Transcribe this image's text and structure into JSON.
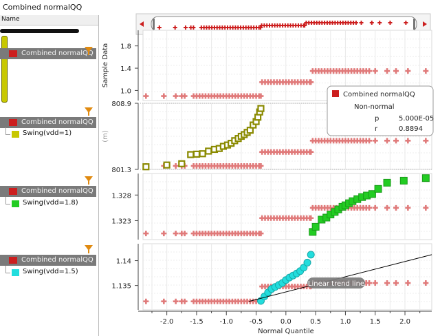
{
  "window": {
    "title": "Combined normalQQ"
  },
  "left_panel": {
    "header": "Name",
    "groups": [
      {
        "label": "Combined normalQQ",
        "color": "#cc1e1e",
        "child": null
      },
      {
        "label": "Combined normalQQ",
        "color": "#cc1e1e",
        "child": {
          "label": "Swing(vdd=1)",
          "color": "#c8c800"
        }
      },
      {
        "label": "Combined normalQQ",
        "color": "#cc1e1e",
        "child": {
          "label": "Swing(vdd=1.8)",
          "color": "#22cc22"
        }
      },
      {
        "label": "Combined normalQQ",
        "color": "#cc1e1e",
        "child": {
          "label": "Swing(vdd=1.5)",
          "color": "#22dddd"
        }
      }
    ]
  },
  "legend": {
    "entry": "Combined normalQQ",
    "status": "Non-normal",
    "stats": [
      {
        "key": "p",
        "value": "5.000E-05"
      },
      {
        "key": "r",
        "value": "0.8894"
      }
    ]
  },
  "annotation": {
    "text": "Linear trend line"
  },
  "colors": {
    "combined": "#e07a7a",
    "combined_legend": "#cc1e1e",
    "trend": "#000000"
  },
  "chart_data": {
    "type": "scatter",
    "xlabel": "Normal Quantile",
    "xlim": [
      -2.4,
      2.45
    ],
    "xticks": [
      "-2.0",
      "-1.5",
      "-1.0",
      "-0.5",
      "0.0",
      "0.5",
      "1.0",
      "1.5",
      "2.0"
    ],
    "panels": [
      {
        "name": "Combined normalQQ",
        "ylabel": "Sample Data",
        "yticks": [
          "1.0",
          "1.4",
          "1.8"
        ],
        "ylim": [
          0.82,
          2.08
        ],
        "series": [
          {
            "name": "Combined normalQQ",
            "marker": "plus",
            "color": "#e07a7a",
            "groups": [
              {
                "y": 0.9,
                "x": [
                  -2.35,
                  -2.05,
                  -1.85,
                  -1.75,
                  -1.7,
                  -1.55,
                  -1.5,
                  -1.45,
                  -1.4,
                  -1.35,
                  -1.3,
                  -1.25,
                  -1.2,
                  -1.15,
                  -1.1,
                  -1.05,
                  -1.0,
                  -0.95,
                  -0.9,
                  -0.85,
                  -0.8,
                  -0.75,
                  -0.7,
                  -0.65,
                  -0.6,
                  -0.55,
                  -0.5,
                  -0.45,
                  -0.42
                ]
              },
              {
                "y": 1.15,
                "x": [
                  -0.4,
                  -0.35,
                  -0.3,
                  -0.25,
                  -0.2,
                  -0.15,
                  -0.1,
                  -0.05,
                  0.0,
                  0.05,
                  0.1,
                  0.15,
                  0.2,
                  0.25,
                  0.3,
                  0.35,
                  0.4,
                  0.42
                ]
              },
              {
                "y": 1.35,
                "x": [
                  0.45,
                  0.5,
                  0.55,
                  0.6,
                  0.65,
                  0.7,
                  0.75,
                  0.8,
                  0.85,
                  0.9,
                  0.95,
                  1.0,
                  1.05,
                  1.1,
                  1.15,
                  1.2,
                  1.25,
                  1.3,
                  1.35,
                  1.4,
                  1.5,
                  1.7,
                  1.85,
                  2.05,
                  2.35
                ]
              }
            ]
          }
        ]
      },
      {
        "name": "Swing(vdd=1)",
        "ylabel": "(m)",
        "yticks": [
          "801.3",
          "808.9"
        ],
        "ylim": [
          801.3,
          808.9
        ],
        "series": [
          {
            "name": "Combined normalQQ",
            "marker": "plus",
            "color": "#e07a7a",
            "groups": [
              {
                "y": 801.7,
                "x": [
                  -2.35,
                  -2.05,
                  -1.85,
                  -1.75,
                  -1.7,
                  -1.55,
                  -1.5,
                  -1.45,
                  -1.4,
                  -1.35,
                  -1.3,
                  -1.25,
                  -1.2,
                  -1.15,
                  -1.1,
                  -1.05,
                  -1.0,
                  -0.95,
                  -0.9,
                  -0.85,
                  -0.8,
                  -0.75,
                  -0.7,
                  -0.65,
                  -0.6,
                  -0.55,
                  -0.5,
                  -0.45,
                  -0.42
                ]
              },
              {
                "y": 803.3,
                "x": [
                  -0.4,
                  -0.35,
                  -0.3,
                  -0.25,
                  -0.2,
                  -0.15,
                  -0.1,
                  -0.05,
                  0.0,
                  0.05,
                  0.1,
                  0.15,
                  0.2,
                  0.25,
                  0.3,
                  0.35,
                  0.4,
                  0.42
                ]
              },
              {
                "y": 804.6,
                "x": [
                  0.45,
                  0.5,
                  0.55,
                  0.6,
                  0.65,
                  0.7,
                  0.75,
                  0.8,
                  0.85,
                  0.9,
                  0.95,
                  1.0,
                  1.05,
                  1.1,
                  1.15,
                  1.2,
                  1.25,
                  1.3,
                  1.35,
                  1.4,
                  1.5,
                  1.7,
                  1.85,
                  2.05,
                  2.35
                ]
              }
            ]
          },
          {
            "name": "Swing(vdd=1)",
            "marker": "square",
            "color": "#c8c800",
            "x": [
              -2.35,
              -2.0,
              -1.75,
              -1.6,
              -1.5,
              -1.4,
              -1.3,
              -1.2,
              -1.12,
              -1.05,
              -0.98,
              -0.92,
              -0.86,
              -0.8,
              -0.75,
              -0.7,
              -0.65,
              -0.6,
              -0.55,
              -0.5,
              -0.47,
              -0.44,
              -0.42
            ],
            "y": [
              801.6,
              801.8,
              801.95,
              803.0,
              803.05,
              803.1,
              803.4,
              803.6,
              803.7,
              803.95,
              804.1,
              804.3,
              804.6,
              804.85,
              805.1,
              805.3,
              805.55,
              805.8,
              806.4,
              806.8,
              807.3,
              807.9,
              808.3
            ]
          }
        ]
      },
      {
        "name": "Swing(vdd=1.8)",
        "ylabel": "",
        "yticks": [
          "1.323",
          "1.328"
        ],
        "ylim": [
          1.3193,
          1.3322
        ],
        "series": [
          {
            "name": "Combined normalQQ",
            "marker": "plus",
            "color": "#e07a7a",
            "groups": [
              {
                "y": 1.3205,
                "x": [
                  -2.35,
                  -2.05,
                  -1.85,
                  -1.75,
                  -1.7,
                  -1.55,
                  -1.5,
                  -1.45,
                  -1.4,
                  -1.35,
                  -1.3,
                  -1.25,
                  -1.2,
                  -1.15,
                  -1.1,
                  -1.05,
                  -1.0,
                  -0.95,
                  -0.9,
                  -0.85,
                  -0.8,
                  -0.75,
                  -0.7,
                  -0.65,
                  -0.6,
                  -0.55,
                  -0.5,
                  -0.45,
                  -0.42
                ]
              },
              {
                "y": 1.3235,
                "x": [
                  -0.4,
                  -0.35,
                  -0.3,
                  -0.25,
                  -0.2,
                  -0.15,
                  -0.1,
                  -0.05,
                  0.0,
                  0.05,
                  0.1,
                  0.15,
                  0.2,
                  0.25,
                  0.3,
                  0.35,
                  0.4,
                  0.42
                ]
              },
              {
                "y": 1.3255,
                "x": [
                  0.45,
                  0.5,
                  0.55,
                  0.6,
                  0.65,
                  0.7,
                  0.75,
                  0.8,
                  0.85,
                  0.9,
                  0.95,
                  1.0,
                  1.05,
                  1.1,
                  1.15,
                  1.2,
                  1.25,
                  1.3,
                  1.35,
                  1.4,
                  1.5,
                  1.7,
                  1.85,
                  2.05,
                  2.35
                ]
              }
            ]
          },
          {
            "name": "Swing(vdd=1.8)",
            "marker": "square",
            "color": "#22cc22",
            "x": [
              0.45,
              0.5,
              0.6,
              0.68,
              0.75,
              0.82,
              0.88,
              0.95,
              1.0,
              1.06,
              1.12,
              1.2,
              1.28,
              1.36,
              1.45,
              1.55,
              1.7,
              1.98,
              2.35
            ],
            "y": [
              1.3208,
              1.3218,
              1.3232,
              1.3236,
              1.3242,
              1.3247,
              1.3252,
              1.3257,
              1.326,
              1.3264,
              1.3268,
              1.3272,
              1.3276,
              1.3279,
              1.3282,
              1.3292,
              1.3304,
              1.3308,
              1.3313
            ]
          }
        ]
      },
      {
        "name": "Swing(vdd=1.5)",
        "ylabel": "",
        "yticks": [
          "1.135",
          "1.14"
        ],
        "ylim": [
          1.1301,
          1.1434
        ],
        "series": [
          {
            "name": "Combined normalQQ",
            "marker": "plus",
            "color": "#e07a7a",
            "groups": [
              {
                "y": 1.1318,
                "x": [
                  -2.35,
                  -2.05,
                  -1.85,
                  -1.75,
                  -1.7,
                  -1.55,
                  -1.5,
                  -1.45,
                  -1.4,
                  -1.35,
                  -1.3,
                  -1.25,
                  -1.2,
                  -1.15,
                  -1.1,
                  -1.05,
                  -1.0,
                  -0.95,
                  -0.9,
                  -0.85,
                  -0.8,
                  -0.75,
                  -0.7,
                  -0.65,
                  -0.6,
                  -0.55,
                  -0.5,
                  -0.45,
                  -0.42
                ]
              },
              {
                "y": 1.1348,
                "x": [
                  -0.4,
                  -0.35,
                  -0.3,
                  -0.25,
                  -0.2,
                  -0.15,
                  -0.1,
                  -0.05,
                  0.0,
                  0.05,
                  0.1,
                  0.15,
                  0.2,
                  0.25,
                  0.3,
                  0.35,
                  0.4,
                  0.42
                ]
              },
              {
                "y": 1.1355,
                "x": [
                  0.45,
                  0.5,
                  0.55,
                  0.6,
                  0.65,
                  0.7,
                  0.75,
                  0.8,
                  0.85,
                  0.9,
                  0.95,
                  1.0,
                  1.05,
                  1.1,
                  1.15,
                  1.2,
                  1.25,
                  1.3,
                  1.35,
                  1.4,
                  1.5,
                  1.7,
                  1.85,
                  2.05,
                  2.35
                ]
              }
            ]
          },
          {
            "name": "Swing(vdd=1.5)",
            "marker": "circle",
            "color": "#22dddd",
            "x": [
              -0.42,
              -0.36,
              -0.3,
              -0.24,
              -0.18,
              -0.12,
              -0.06,
              0.0,
              0.06,
              0.12,
              0.18,
              0.24,
              0.3,
              0.36,
              0.42
            ],
            "y": [
              1.1319,
              1.1328,
              1.1336,
              1.1343,
              1.1347,
              1.1351,
              1.1355,
              1.1361,
              1.1366,
              1.137,
              1.1374,
              1.1379,
              1.1386,
              1.1396,
              1.1412
            ]
          },
          {
            "name": "Linear trend line",
            "marker": "line",
            "color": "#000000",
            "x": [
              -0.62,
              2.45
            ],
            "y": [
              1.1318,
              1.1412
            ]
          }
        ]
      }
    ],
    "overview_range": [
      -2.4,
      2.45
    ]
  }
}
